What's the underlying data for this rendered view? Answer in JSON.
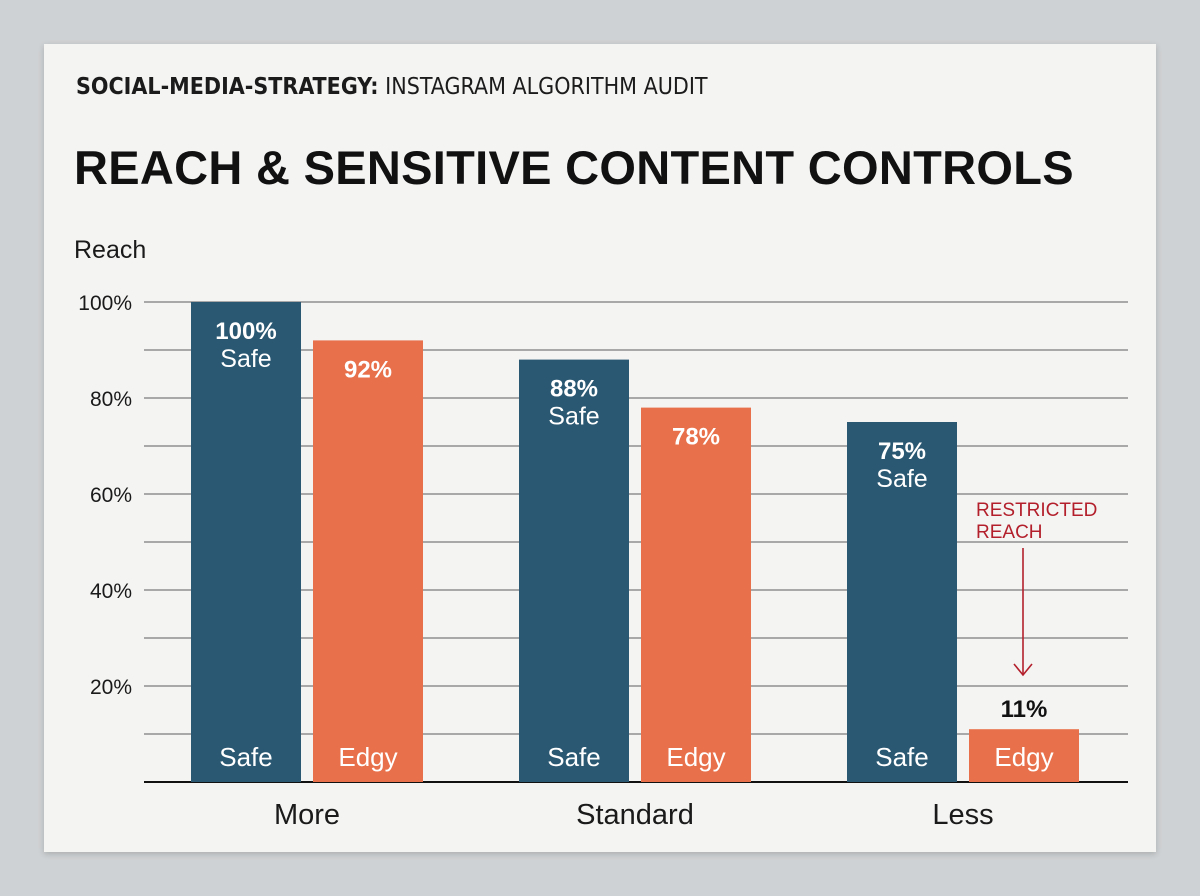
{
  "header": {
    "overline_bold": "SOCIAL-MEDIA-STRATEGY:",
    "overline_rest": " INSTAGRAM ALGORITHM AUDIT",
    "title": "REACH & SENSITIVE CONTENT CONTROLS"
  },
  "colors": {
    "safe": "#2a5872",
    "edgy": "#e8704a",
    "annotation": "#b3202c",
    "grid": "#2a2a2a",
    "card": "#f4f4f3"
  },
  "chart_data": {
    "type": "bar",
    "ylabel": "Reach",
    "ylim": [
      0,
      100
    ],
    "yticks": [
      "20%",
      "40%",
      "60%",
      "80%",
      "100%"
    ],
    "ytick_values": [
      20,
      40,
      60,
      80,
      100
    ],
    "categories": [
      "More",
      "Standard",
      "Less"
    ],
    "series": [
      {
        "name": "Safe",
        "values": [
          100,
          88,
          75
        ],
        "value_labels": [
          "100%",
          "88%",
          "75%"
        ],
        "bar_labels": [
          "Safe",
          "Safe",
          "Safe"
        ],
        "sub_labels": [
          "Safe",
          "Safe",
          "Safe"
        ]
      },
      {
        "name": "Edgy",
        "values": [
          92,
          78,
          11
        ],
        "value_labels": [
          "92%",
          "78%",
          "11%"
        ],
        "bar_labels": [
          "Edgy",
          "Edgy",
          "Edgy"
        ]
      }
    ],
    "annotation": {
      "lines": [
        "RESTRICTED",
        "REACH"
      ],
      "category": "Less",
      "series": "Edgy"
    }
  }
}
